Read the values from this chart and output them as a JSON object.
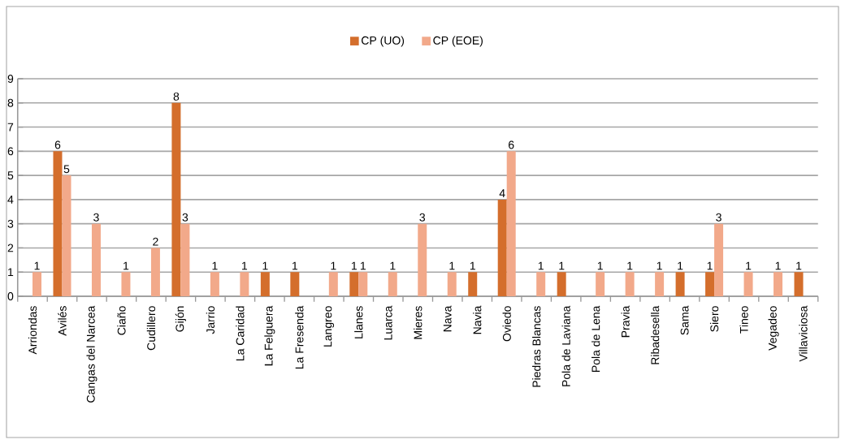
{
  "chart_data": {
    "type": "bar",
    "categories": [
      "Arriondas",
      "Avilés",
      "Cangas del Narcea",
      "Ciaño",
      "Cudillero",
      "Gijón",
      "Jarrio",
      "La Caridad",
      "La Felguera",
      "La Fresenda",
      "Langreo",
      "Llanes",
      "Luarca",
      "Mieres",
      "Nava",
      "Navia",
      "Oviedo",
      "Piedras Blancas",
      "Pola de Laviana",
      "Pola de Lena",
      "Pravia",
      "Ribadesella",
      "Sama",
      "Siero",
      "Tineo",
      "Vegadeo",
      "Villaviciosa"
    ],
    "series": [
      {
        "name": "CP (UO)",
        "color": "#d46e2c",
        "values": [
          null,
          6,
          null,
          null,
          null,
          8,
          null,
          null,
          1,
          1,
          null,
          1,
          null,
          null,
          null,
          1,
          4,
          null,
          1,
          null,
          null,
          null,
          1,
          1,
          null,
          null,
          1
        ]
      },
      {
        "name": "CP (EOE)",
        "color": "#f2a98a",
        "values": [
          1,
          5,
          3,
          1,
          2,
          3,
          1,
          1,
          null,
          null,
          1,
          1,
          1,
          3,
          1,
          null,
          6,
          1,
          null,
          1,
          1,
          1,
          null,
          3,
          1,
          1,
          null
        ]
      }
    ],
    "ylim": [
      0,
      9
    ],
    "yticks": [
      0,
      1,
      2,
      3,
      4,
      5,
      6,
      7,
      8,
      9
    ],
    "grid": "y",
    "legend": "top",
    "data_labels": true
  }
}
